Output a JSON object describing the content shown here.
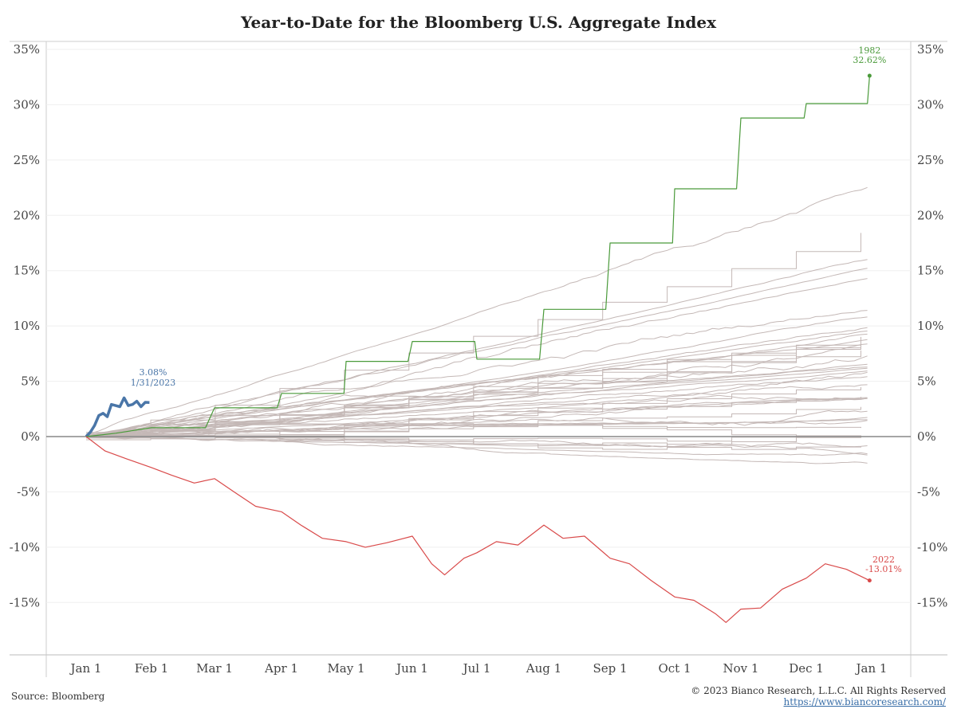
{
  "title": "Year-to-Date for the Bloomberg U.S. Aggregate Index",
  "footer": {
    "source": "Source: Bloomberg",
    "copyright": "© 2023 Bianco Research, L.L.C. All Rights Reserved",
    "url": "https://www.biancoresearch.com/"
  },
  "colors": {
    "current": "#4a76a8",
    "best": "#4a9a3a",
    "worst": "#d94a4a",
    "history": "#c4b8b6",
    "zero": "#888888"
  },
  "chart_data": {
    "type": "line",
    "title": "Year-to-Date for the Bloomberg U.S. Aggregate Index",
    "xlabel": "",
    "ylabel": "",
    "x_ticks": [
      "Jan 1",
      "Feb 1",
      "Mar 1",
      "Apr 1",
      "May 1",
      "Jun 1",
      "Jul 1",
      "Aug 1",
      "Sep 1",
      "Oct 1",
      "Nov 1",
      "Dec 1",
      "Jan 1"
    ],
    "y_ticks": [
      "-15%",
      "-10%",
      "-5%",
      "0%",
      "5%",
      "10%",
      "15%",
      "20%",
      "25%",
      "30%",
      "35%"
    ],
    "ylim": [
      -19,
      35
    ],
    "y_axis_units": "percent",
    "grid": true,
    "series": [
      {
        "name": "2023",
        "role": "current",
        "label_value": "3.08%",
        "label_date": "1/31/2023",
        "points": [
          [
            "Jan 1",
            0
          ],
          [
            "Jan 3",
            0.4
          ],
          [
            "Jan 5",
            1.0
          ],
          [
            "Jan 7",
            1.9
          ],
          [
            "Jan 9",
            2.1
          ],
          [
            "Jan 11",
            1.8
          ],
          [
            "Jan 13",
            2.9
          ],
          [
            "Jan 15",
            2.8
          ],
          [
            "Jan 17",
            2.7
          ],
          [
            "Jan 19",
            3.5
          ],
          [
            "Jan 21",
            2.8
          ],
          [
            "Jan 23",
            2.9
          ],
          [
            "Jan 25",
            3.2
          ],
          [
            "Jan 27",
            2.7
          ],
          [
            "Jan 29",
            3.1
          ],
          [
            "Jan 31",
            3.08
          ]
        ]
      },
      {
        "name": "1982",
        "role": "best",
        "label_value": "32.62%",
        "points": [
          [
            "Jan 1",
            0
          ],
          [
            "Jan 15",
            0.3
          ],
          [
            "Feb 1",
            0.8
          ],
          [
            "Feb 25",
            0.8
          ],
          [
            "Mar 1",
            2.6
          ],
          [
            "Mar 30",
            2.6
          ],
          [
            "Apr 1",
            3.9
          ],
          [
            "Apr 30",
            3.9
          ],
          [
            "May 1",
            6.8
          ],
          [
            "May 30",
            6.8
          ],
          [
            "Jun 1",
            8.6
          ],
          [
            "Jun 30",
            8.6
          ],
          [
            "Jul 1",
            7.0
          ],
          [
            "Jul 30",
            7.0
          ],
          [
            "Aug 1",
            11.5
          ],
          [
            "Aug 30",
            11.5
          ],
          [
            "Sep 1",
            17.5
          ],
          [
            "Sep 30",
            17.5
          ],
          [
            "Oct 1",
            22.4
          ],
          [
            "Oct 30",
            22.4
          ],
          [
            "Nov 1",
            28.8
          ],
          [
            "Nov 30",
            28.8
          ],
          [
            "Dec 1",
            30.1
          ],
          [
            "Dec 30",
            30.1
          ],
          [
            "Dec 31",
            32.62
          ]
        ]
      },
      {
        "name": "2022",
        "role": "worst",
        "label_value": "-13.01%",
        "points": [
          [
            "Jan 1",
            0
          ],
          [
            "Jan 10",
            -1.3
          ],
          [
            "Jan 20",
            -2.0
          ],
          [
            "Feb 1",
            -2.8
          ],
          [
            "Feb 10",
            -3.5
          ],
          [
            "Feb 20",
            -4.2
          ],
          [
            "Mar 1",
            -3.8
          ],
          [
            "Mar 10",
            -5.0
          ],
          [
            "Mar 20",
            -6.3
          ],
          [
            "Apr 1",
            -6.8
          ],
          [
            "Apr 10",
            -8.0
          ],
          [
            "Apr 20",
            -9.2
          ],
          [
            "May 1",
            -9.5
          ],
          [
            "May 10",
            -10.0
          ],
          [
            "May 20",
            -9.6
          ],
          [
            "Jun 1",
            -9.0
          ],
          [
            "Jun 10",
            -11.5
          ],
          [
            "Jun 16",
            -12.5
          ],
          [
            "Jun 25",
            -11.0
          ],
          [
            "Jul 1",
            -10.5
          ],
          [
            "Jul 10",
            -9.5
          ],
          [
            "Jul 20",
            -9.8
          ],
          [
            "Aug 1",
            -8.0
          ],
          [
            "Aug 10",
            -9.2
          ],
          [
            "Aug 20",
            -9.0
          ],
          [
            "Sep 1",
            -11.0
          ],
          [
            "Sep 10",
            -11.5
          ],
          [
            "Sep 20",
            -13.0
          ],
          [
            "Oct 1",
            -14.5
          ],
          [
            "Oct 10",
            -14.8
          ],
          [
            "Oct 20",
            -16.0
          ],
          [
            "Oct 25",
            -16.8
          ],
          [
            "Nov 1",
            -15.6
          ],
          [
            "Nov 10",
            -15.5
          ],
          [
            "Nov 20",
            -13.8
          ],
          [
            "Dec 1",
            -12.8
          ],
          [
            "Dec 10",
            -11.5
          ],
          [
            "Dec 20",
            -12.0
          ],
          [
            "Dec 31",
            -13.01
          ]
        ]
      }
    ],
    "history_band": {
      "note_hidden": "",
      "count": 44
    }
  }
}
